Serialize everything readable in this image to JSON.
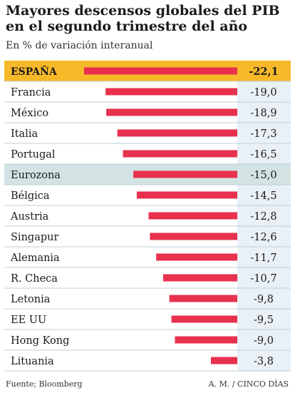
{
  "chart_data": {
    "type": "bar",
    "orientation": "horizontal",
    "title": "Mayores descensos globales del PIB en el segundo trimestre del año",
    "subtitle": "En % de variación interanual",
    "categories": [
      "ESPAÑA",
      "Francia",
      "México",
      "Italia",
      "Portugal",
      "Eurozona",
      "Bélgica",
      "Austria",
      "Singapur",
      "Alemania",
      "R. Checa",
      "Letonia",
      "EE UU",
      "Hong Kong",
      "Lituania"
    ],
    "values": [
      -22.1,
      -19.0,
      -18.9,
      -17.3,
      -16.5,
      -15.0,
      -14.5,
      -12.8,
      -12.6,
      -11.7,
      -10.7,
      -9.8,
      -9.5,
      -9.0,
      -3.8
    ],
    "value_labels": [
      "-22,1",
      "-19,0",
      "-18,9",
      "-17,3",
      "-16,5",
      "-15,0",
      "-14,5",
      "-12,8",
      "-12,6",
      "-11,7",
      "-10,7",
      "-9,8",
      "-9,5",
      "-9,0",
      "-3,8"
    ],
    "highlight": {
      "ESPAÑA": "primary",
      "Eurozona": "secondary"
    },
    "xlim": [
      -22.1,
      0
    ],
    "grid": false,
    "legend": "none"
  },
  "footer": {
    "source": "Fuente; Bloomberg",
    "credit": "A. M. / CINCO DÍAS"
  },
  "colors": {
    "bar": "#e8304f",
    "highlight_row": "#f7b92a",
    "eurozona_row": "#d3e3e4",
    "value_column": "#e9f0f6",
    "divider": "#bccfd9",
    "label": "#1a1a1a"
  }
}
